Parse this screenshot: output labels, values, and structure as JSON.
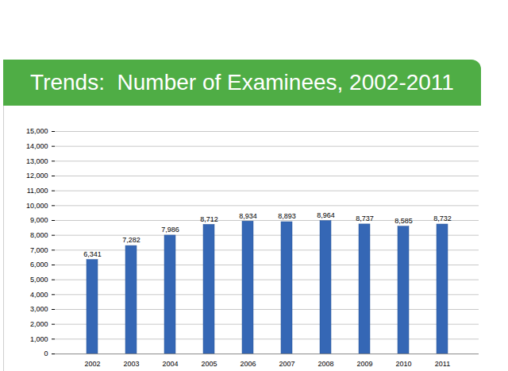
{
  "chart_data": {
    "type": "bar",
    "title": "Trends:  Number of Examinees, 2002-2011",
    "categories": [
      "2002",
      "2003",
      "2004",
      "2005",
      "2006",
      "2007",
      "2008",
      "2009",
      "2010",
      "2011"
    ],
    "values": [
      6341,
      7282,
      7986,
      8712,
      8934,
      8893,
      8964,
      8737,
      8585,
      8732
    ],
    "value_labels": [
      "6,341",
      "7,282",
      "7,986",
      "8,712",
      "8,934",
      "8,893",
      "8,964",
      "8,737",
      "8,585",
      "8,732"
    ],
    "data_labels": true,
    "color": "#3567b5",
    "ylim": [
      0,
      15000
    ],
    "yticks": [
      0,
      {
        "value": 1000,
        "label": "1,000"
      },
      {
        "value": 2000,
        "label": "2,000"
      },
      {
        "value": 3000,
        "label": "3,000"
      },
      {
        "value": 4000,
        "label": "4,000"
      },
      {
        "value": 5000,
        "label": "5,000"
      },
      {
        "value": 6000,
        "label": "6,000"
      },
      {
        "value": 7000,
        "label": "7,000"
      },
      {
        "value": 8000,
        "label": "8,000"
      },
      {
        "value": 9000,
        "label": "9,000"
      },
      {
        "value": 10000,
        "label": "10,000"
      },
      {
        "value": 11000,
        "label": "11,000"
      },
      {
        "value": 12000,
        "label": "12,000"
      },
      {
        "value": 13000,
        "label": "13,000"
      },
      {
        "value": 14000,
        "label": "14,000"
      },
      {
        "value": 15000,
        "label": "15,000"
      }
    ],
    "grid": true
  }
}
